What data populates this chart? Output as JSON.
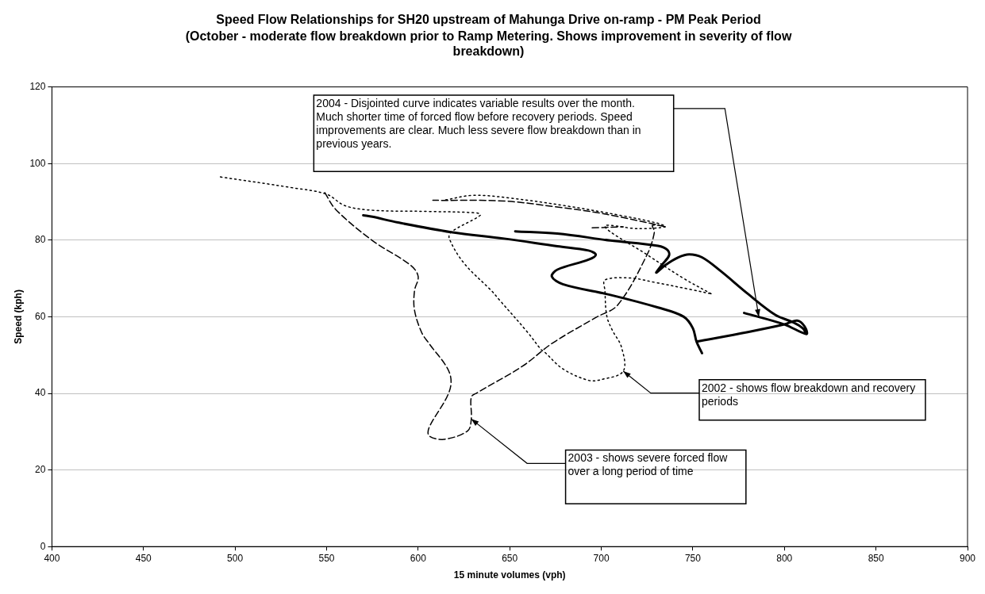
{
  "chart_data": {
    "type": "line",
    "title": "Speed Flow Relationships for SH20 upstream of Mahunga Drive on-ramp - PM Peak Period",
    "subtitle": "(October - moderate flow breakdown prior to Ramp Metering. Shows improvement in severity of flow breakdown)",
    "xlabel": "15 minute volumes (vph)",
    "ylabel": "Speed (kph)",
    "xlim": [
      400,
      900
    ],
    "xticks": [
      400,
      450,
      500,
      550,
      600,
      650,
      700,
      750,
      800,
      850,
      900
    ],
    "ylim": [
      0,
      120
    ],
    "yticks": [
      0,
      20,
      40,
      60,
      80,
      100,
      120
    ],
    "grid": "y",
    "series": [
      {
        "color": "#000000",
        "line_style": "dotted",
        "x": [
          492,
          531,
          550,
          560,
          575,
          605,
          632,
          634,
          618,
          617,
          625,
          640,
          644,
          660,
          667,
          669,
          679,
          693,
          700,
          712,
          711,
          706,
          703,
          702,
          702,
          716,
          729,
          750,
          760,
          null,
          615,
          630,
          650,
          680,
          710,
          730,
          735,
          720,
          702,
          725,
          745,
          760
        ],
        "values": [
          96.5,
          93.7,
          92,
          89,
          87.8,
          87.5,
          87.1,
          86.5,
          82.1,
          80.4,
          74,
          66.8,
          64.6,
          55.8,
          51.5,
          50.8,
          46.4,
          43.4,
          43.6,
          45.8,
          52.1,
          56.5,
          60.2,
          66.8,
          69.6,
          70.1,
          69,
          67,
          66,
          null,
          90.5,
          91.7,
          91,
          89,
          86.5,
          84.5,
          83.5,
          83,
          83.6,
          76.2,
          70,
          66
        ]
      },
      {
        "color": "#000000",
        "line_style": "dashed",
        "x": [
          549,
          555,
          575,
          596,
          600,
          598,
          598,
          602,
          606,
          617,
          617,
          606,
          606,
          614,
          627,
          629,
          629,
          632,
          657,
          673,
          697,
          709,
          725,
          729,
          728,
          735,
          700,
          675,
          647,
          608,
          null,
          695,
          712
        ],
        "values": [
          92.4,
          88,
          79.9,
          73.4,
          70.5,
          66.8,
          61.7,
          55.8,
          53,
          45.5,
          40.5,
          31.1,
          28.9,
          28,
          30.2,
          33.3,
          39,
          40.1,
          47.1,
          53,
          59.8,
          63.1,
          76.2,
          82.1,
          83.9,
          83.5,
          87,
          88.7,
          90.2,
          90.4,
          null,
          83.2,
          83.5
        ]
      },
      {
        "color": "#000000",
        "line_style": "solid",
        "x": [
          570,
          575,
          589,
          618,
          647,
          676,
          693,
          697,
          693,
          676,
          673,
          679,
          705,
          731,
          745,
          750,
          752,
          755,
          null,
          653,
          676,
          705,
          731,
          736,
          737,
          733,
          730,
          735,
          742,
          748,
          755,
          765,
          780,
          795,
          805,
          810,
          812,
          null,
          752,
          780,
          800,
          807,
          811,
          812,
          800,
          778
        ],
        "values": [
          86.5,
          86.1,
          84.6,
          82.1,
          80.4,
          78.4,
          77.3,
          76.2,
          74.9,
          72.3,
          70.5,
          68.5,
          65.7,
          62.4,
          60,
          57,
          53.5,
          50.5,
          null,
          82.3,
          81.7,
          79.9,
          78.5,
          77.5,
          76,
          73.5,
          71.5,
          73.5,
          75.5,
          76.3,
          75.5,
          72,
          66,
          60.5,
          58.5,
          57,
          55.5,
          null,
          53.5,
          56,
          58,
          59,
          57.5,
          55.5,
          58,
          61
        ]
      }
    ],
    "annotations": [
      "2004 - Disjointed curve indicates variable results over the month. Much shorter time of forced flow before recovery periods. Speed improvements are clear. Much less severe flow breakdown than in previous years.",
      {
        "text": "2002 - shows flow breakdown and recovery periods",
        "x": 712,
        "y": 45.8
      },
      {
        "text": "2003 - shows severe forced flow over a long period of time",
        "x": 629,
        "y": 33.3
      }
    ]
  }
}
